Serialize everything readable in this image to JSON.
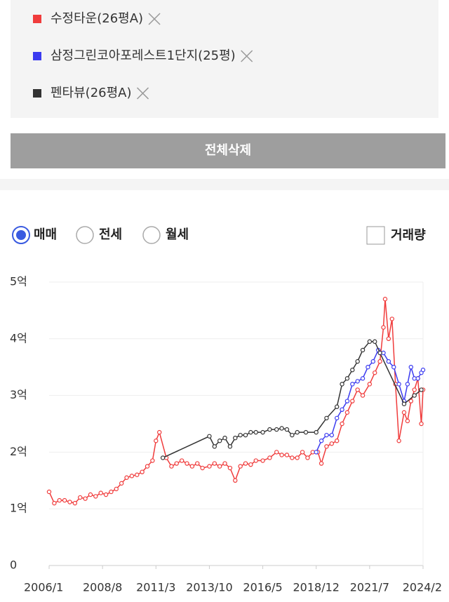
{
  "button_label": "전체삭제",
  "controls": {
    "radios": [
      "매매",
      "전세",
      "월세"
    ],
    "checkbox": "거래량"
  },
  "chart_data": {
    "type": "line",
    "ylim": [
      0,
      5
    ],
    "yticks": [
      0,
      {
        "value": 1,
        "label": "1억"
      },
      {
        "value": 2,
        "label": "2억"
      },
      {
        "value": 3,
        "label": "3억"
      },
      {
        "value": 4,
        "label": "4억"
      },
      {
        "value": 5,
        "label": "5억"
      }
    ],
    "xlim": [
      "2006/1",
      "2024/2"
    ],
    "xticks": [
      "2006/1",
      "2008/8",
      "2011/3",
      "2013/10",
      "2016/5",
      "2018/12",
      "2021/7",
      "2024/2"
    ],
    "grid": true,
    "series": [
      {
        "name": "수정타운(26평A)",
        "color": "#f03c3c",
        "x": [
          "2006/1",
          "2006/4",
          "2006/7",
          "2006/10",
          "2007/1",
          "2007/4",
          "2007/7",
          "2007/10",
          "2008/1",
          "2008/4",
          "2008/7",
          "2008/10",
          "2009/1",
          "2009/4",
          "2009/7",
          "2009/10",
          "2010/1",
          "2010/4",
          "2010/7",
          "2010/10",
          "2011/1",
          "2011/3",
          "2011/5",
          "2011/9",
          "2011/12",
          "2012/3",
          "2012/6",
          "2012/9",
          "2012/12",
          "2013/3",
          "2013/6",
          "2013/10",
          "2014/1",
          "2014/4",
          "2014/7",
          "2014/10",
          "2015/1",
          "2015/4",
          "2015/7",
          "2015/10",
          "2016/1",
          "2016/5",
          "2016/9",
          "2017/1",
          "2017/4",
          "2017/7",
          "2017/10",
          "2018/1",
          "2018/4",
          "2018/7",
          "2018/10",
          "2019/1",
          "2019/3",
          "2019/6",
          "2019/9",
          "2019/12",
          "2020/3",
          "2020/6",
          "2020/9",
          "2020/12",
          "2021/3",
          "2021/7",
          "2021/10",
          "2022/1",
          "2022/3",
          "2022/4",
          "2022/6",
          "2022/8",
          "2022/10",
          "2022/12",
          "2023/3",
          "2023/5",
          "2023/7",
          "2023/9",
          "2023/11",
          "2024/1",
          "2024/2"
        ],
        "values": [
          1.3,
          1.1,
          1.15,
          1.15,
          1.12,
          1.1,
          1.2,
          1.18,
          1.25,
          1.22,
          1.28,
          1.25,
          1.3,
          1.35,
          1.45,
          1.55,
          1.58,
          1.6,
          1.65,
          1.75,
          1.85,
          2.2,
          2.35,
          1.9,
          1.75,
          1.8,
          1.85,
          1.8,
          1.75,
          1.8,
          1.72,
          1.75,
          1.8,
          1.75,
          1.8,
          1.72,
          1.5,
          1.75,
          1.8,
          1.78,
          1.85,
          1.85,
          1.9,
          2.0,
          1.95,
          1.95,
          1.9,
          1.9,
          2.0,
          1.9,
          2.0,
          2.0,
          1.8,
          2.1,
          2.15,
          2.2,
          2.5,
          2.7,
          2.9,
          3.1,
          3.0,
          3.2,
          3.4,
          3.6,
          4.2,
          4.7,
          4.0,
          4.35,
          3.2,
          2.2,
          2.7,
          2.55,
          2.9,
          3.1,
          3.3,
          2.5,
          3.1
        ]
      },
      {
        "name": "삼정그린코아포레스트1단지(25평)",
        "color": "#3b3bf0",
        "x": [
          "2018/12",
          "2019/3",
          "2019/6",
          "2019/9",
          "2019/12",
          "2020/3",
          "2020/6",
          "2020/9",
          "2020/12",
          "2021/3",
          "2021/6",
          "2021/9",
          "2021/12",
          "2022/3",
          "2022/6",
          "2022/9",
          "2022/12",
          "2023/3",
          "2023/5",
          "2023/7",
          "2023/9",
          "2023/11",
          "2024/1",
          "2024/2"
        ],
        "values": [
          2.0,
          2.2,
          2.3,
          2.3,
          2.6,
          2.75,
          2.9,
          3.2,
          3.25,
          3.3,
          3.5,
          3.6,
          3.8,
          3.75,
          3.6,
          3.5,
          3.2,
          2.9,
          3.2,
          3.5,
          3.3,
          3.3,
          3.4,
          3.45
        ]
      },
      {
        "name": "펜타뷰(26평A)",
        "color": "#333333",
        "x": [
          "2011/7",
          "2013/10",
          "2014/1",
          "2014/4",
          "2014/7",
          "2014/10",
          "2015/1",
          "2015/4",
          "2015/7",
          "2015/10",
          "2016/1",
          "2016/5",
          "2016/9",
          "2017/1",
          "2017/4",
          "2017/7",
          "2017/10",
          "2018/1",
          "2018/6",
          "2018/12",
          "2019/6",
          "2019/12",
          "2020/3",
          "2020/6",
          "2020/9",
          "2020/12",
          "2021/3",
          "2021/7",
          "2021/10",
          "2022/1",
          "2023/3",
          "2023/9",
          "2024/1"
        ],
        "values": [
          1.9,
          2.28,
          2.1,
          2.2,
          2.25,
          2.1,
          2.25,
          2.3,
          2.3,
          2.35,
          2.35,
          2.35,
          2.4,
          2.4,
          2.42,
          2.4,
          2.3,
          2.35,
          2.35,
          2.35,
          2.6,
          2.8,
          3.2,
          3.3,
          3.45,
          3.6,
          3.8,
          3.95,
          3.95,
          3.75,
          2.85,
          3.0,
          3.1
        ]
      }
    ]
  }
}
